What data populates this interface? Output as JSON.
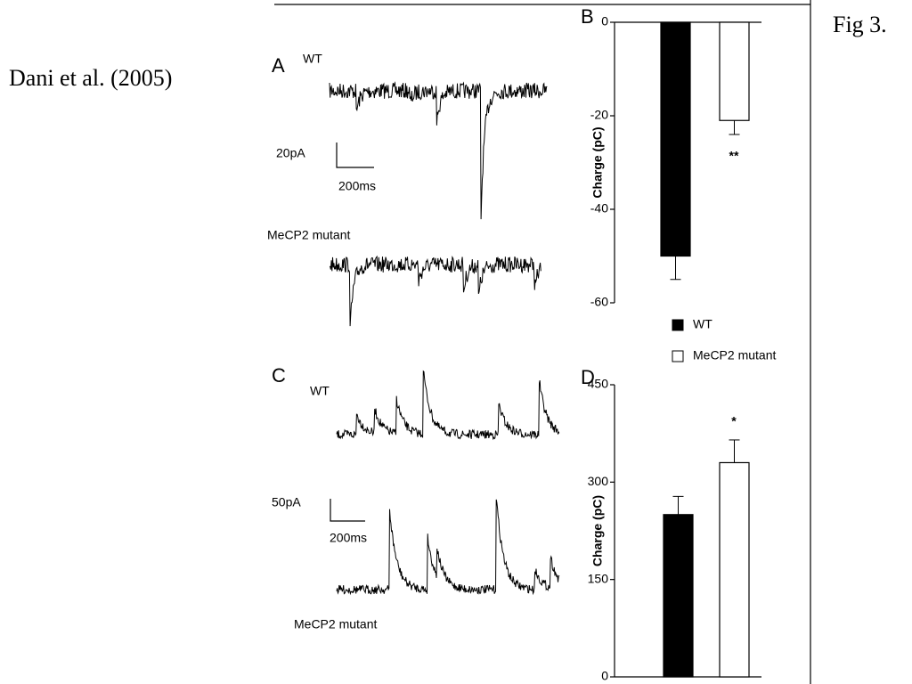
{
  "slide": {
    "citation": "Dani et al.  (2005)",
    "figure": "Fig 3.",
    "panels": {
      "a": "A",
      "b": "B",
      "c": "C",
      "d": "D"
    },
    "traces": {
      "a_wt": "WT",
      "a_scale_y": "20pA",
      "a_scale_x": "200ms",
      "a_mut": "MeCP2 mutant",
      "c_wt": "WT",
      "c_scale_y": "50pA",
      "c_scale_x": "200ms",
      "c_mut": "MeCP2 mutant"
    }
  },
  "chart_data": [
    {
      "type": "bar",
      "y_label": "Charge (pC)",
      "ylim": [
        -60,
        0
      ],
      "yticks": [
        0,
        -20,
        -40,
        -60
      ],
      "series": [
        {
          "name": "WT",
          "color": "#000000",
          "values": [
            -50
          ],
          "errors": [
            5
          ]
        },
        {
          "name": "MeCP2 mutant",
          "color": "#ffffff",
          "values": [
            -21
          ],
          "errors": [
            3
          ]
        }
      ],
      "annotation": "**"
    },
    {
      "type": "bar",
      "y_label": "Charge (pC)",
      "ylim": [
        0,
        450
      ],
      "yticks": [
        0,
        150,
        300,
        450
      ],
      "series": [
        {
          "color": "#000000",
          "values": [
            250
          ],
          "errors": [
            28
          ]
        },
        {
          "color": "#ffffff",
          "values": [
            330
          ],
          "errors": [
            35
          ]
        }
      ],
      "annotation": "*"
    }
  ]
}
